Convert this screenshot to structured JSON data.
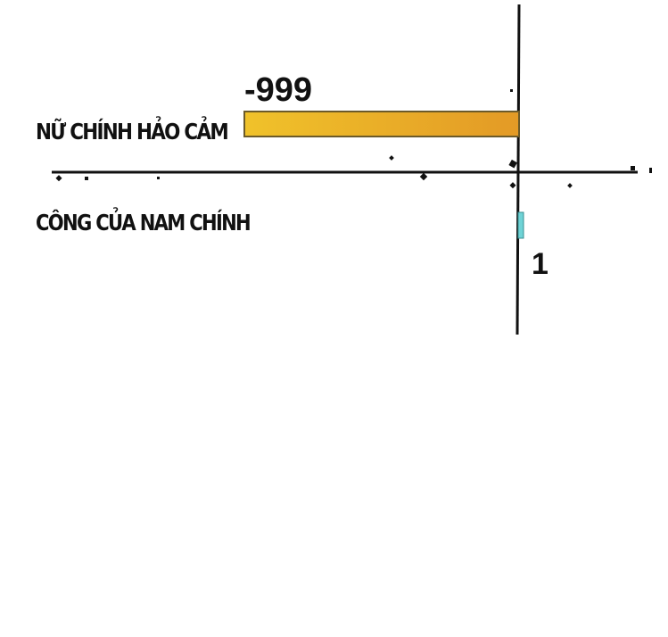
{
  "chart_data": {
    "type": "bar",
    "orientation": "horizontal",
    "categories": [
      "NỮ CHÍNH HẢO CẢM",
      "CÔNG CỦA NAM CHÍNH"
    ],
    "values": [
      -999,
      1
    ],
    "data_labels": [
      "-999",
      "1"
    ],
    "colors": [
      "#e8b125",
      "#6fd3d6"
    ],
    "title": "",
    "xlabel": "",
    "ylabel": "",
    "grid": false,
    "legend": "none"
  }
}
